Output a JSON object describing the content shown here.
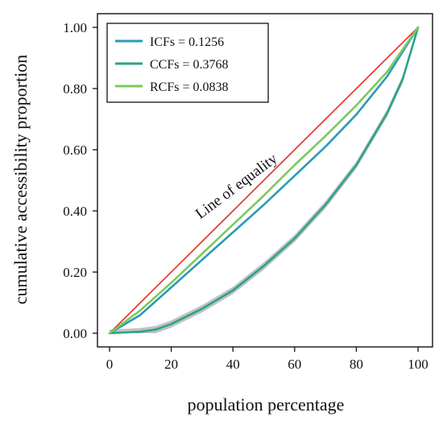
{
  "chart_data": {
    "type": "line",
    "xlabel": "population percentage",
    "ylabel": "cumulative accessibility proportion",
    "xlim": [
      0,
      100
    ],
    "ylim": [
      0,
      1
    ],
    "xticks": [
      0,
      20,
      40,
      60,
      80,
      100
    ],
    "xtick_labels": [
      "0",
      "20",
      "40",
      "60",
      "80",
      "100"
    ],
    "yticks": [
      0,
      0.2,
      0.4,
      0.6,
      0.8,
      1.0
    ],
    "ytick_labels": [
      "0.00",
      "0.20",
      "0.40",
      "0.60",
      "0.80",
      "1.00"
    ],
    "grid": false,
    "legend_position": "top-left",
    "annotation": "Line of equality",
    "equality_line": {
      "color": "#e03a2c",
      "x": [
        0,
        100
      ],
      "y": [
        0,
        1
      ]
    },
    "series": [
      {
        "name": "ICFs = 0.1256",
        "color": "#2a9ab8",
        "x": [
          0,
          10,
          20,
          30,
          40,
          50,
          60,
          70,
          80,
          90,
          100
        ],
        "y": [
          0,
          0.06,
          0.15,
          0.24,
          0.33,
          0.42,
          0.515,
          0.61,
          0.715,
          0.84,
          1.0
        ]
      },
      {
        "name": "CCFs = 0.3768",
        "color": "#2aa38c",
        "band": {
          "color": "#c2c2c2",
          "half_width": 0.012
        },
        "x": [
          0,
          10,
          15,
          20,
          25,
          30,
          40,
          50,
          60,
          70,
          80,
          90,
          95,
          100
        ],
        "y": [
          0,
          0.005,
          0.012,
          0.03,
          0.055,
          0.08,
          0.14,
          0.22,
          0.31,
          0.42,
          0.55,
          0.72,
          0.83,
          1.0
        ]
      },
      {
        "name": "RCFs = 0.0838",
        "color": "#7cc95d",
        "x": [
          0,
          10,
          20,
          30,
          40,
          50,
          60,
          70,
          80,
          90,
          100
        ],
        "y": [
          0,
          0.075,
          0.165,
          0.26,
          0.355,
          0.45,
          0.55,
          0.645,
          0.745,
          0.855,
          1.0
        ]
      }
    ]
  }
}
